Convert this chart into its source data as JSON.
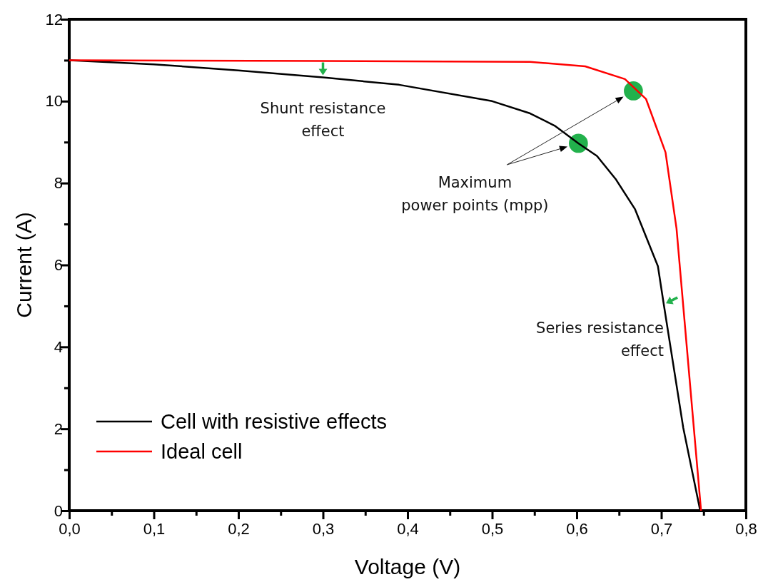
{
  "chart_data": {
    "type": "line",
    "xlabel": "Voltage (V)",
    "ylabel": "Current (A)",
    "xlim": [
      0,
      0.8
    ],
    "ylim": [
      0,
      12
    ],
    "xticks": [
      {
        "value": 0,
        "label": "0,0"
      },
      {
        "value": 0.05,
        "label": null
      },
      {
        "value": 0.1,
        "label": "0,1"
      },
      {
        "value": 0.15,
        "label": null
      },
      {
        "value": 0.2,
        "label": "0,2"
      },
      {
        "value": 0.25,
        "label": null
      },
      {
        "value": 0.3,
        "label": "0,3"
      },
      {
        "value": 0.35,
        "label": null
      },
      {
        "value": 0.4,
        "label": "0,4"
      },
      {
        "value": 0.45,
        "label": null
      },
      {
        "value": 0.5,
        "label": "0,5"
      },
      {
        "value": 0.55,
        "label": null
      },
      {
        "value": 0.6,
        "label": "0,6"
      },
      {
        "value": 0.65,
        "label": null
      },
      {
        "value": 0.7,
        "label": "0,7"
      },
      {
        "value": 0.75,
        "label": null
      },
      {
        "value": 0.8,
        "label": "0,8"
      }
    ],
    "yticks": [
      0,
      {
        "value": 1,
        "label": null
      },
      2,
      {
        "value": 3,
        "label": null
      },
      4,
      {
        "value": 5,
        "label": null
      },
      6,
      {
        "value": 7,
        "label": null
      },
      8,
      {
        "value": 9,
        "label": null
      },
      10,
      {
        "value": 11,
        "label": null
      },
      12
    ],
    "grid": false,
    "legend": "bottom left",
    "marker": "none",
    "line_style": "solid",
    "series": [
      {
        "name": "Cell with resistive effects",
        "color": "#000000",
        "x": [
          0,
          0.1,
          0.2,
          0.3,
          0.39,
          0.5,
          0.545,
          0.574,
          0.602,
          0.624,
          0.646,
          0.669,
          0.696,
          0.703,
          0.726,
          0.746
        ],
        "values": [
          11.0,
          10.9,
          10.75,
          10.58,
          10.4,
          10.0,
          9.7,
          9.4,
          8.97,
          8.66,
          8.1,
          7.36,
          5.97,
          5.03,
          2.02,
          0
        ]
      },
      {
        "name": "Ideal cell",
        "color": "#ff0000",
        "x": [
          0,
          0.3,
          0.545,
          0.61,
          0.657,
          0.682,
          0.705,
          0.718,
          0.737,
          0.747
        ],
        "values": [
          11.0,
          10.98,
          10.96,
          10.85,
          10.54,
          10.05,
          8.75,
          6.89,
          2.37,
          0
        ]
      },
      {
        "type": "scatter",
        "marker": "circle",
        "color": "#22b14c",
        "x": [
          0.602,
          0.667
        ],
        "values": [
          8.97,
          10.25
        ]
      }
    ],
    "annotations": [
      {
        "text": "Shunt resistance\neffect",
        "x": 0.3,
        "y": 10.58
      },
      {
        "text": "Maximum\npower points (mpp)",
        "x": 0.602,
        "y": 8.97
      },
      {
        "text": "Series resistance\neffect",
        "x": 0.703,
        "y": 5.03
      }
    ]
  }
}
